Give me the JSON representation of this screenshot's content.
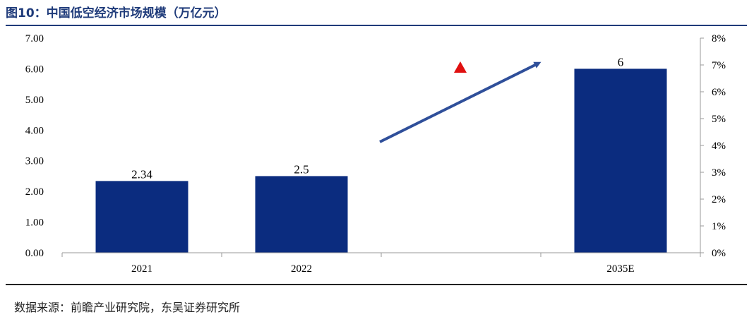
{
  "header": {
    "title": "图10：中国低空经济市场规模（万亿元）"
  },
  "footer": {
    "source": "数据来源：前瞻产业研究院，东吴证券研究所"
  },
  "chart_data": {
    "type": "bar",
    "title": "图10：中国低空经济市场规模（万亿元）",
    "categories": [
      "2021",
      "2022",
      "",
      "2035E"
    ],
    "series": [
      {
        "values": [
          2.34,
          2.5,
          null,
          6
        ]
      }
    ],
    "data_labels": [
      "2.34",
      "2.5",
      "",
      "6"
    ],
    "ylim": [
      0,
      7
    ],
    "yticks": [
      "0.00",
      "1.00",
      "2.00",
      "3.00",
      "4.00",
      "5.00",
      "6.00",
      "7.00"
    ],
    "y2lim": [
      0,
      0.08
    ],
    "y2ticks": [
      "0%",
      "1%",
      "2%",
      "3%",
      "4%",
      "5%",
      "6%",
      "7%",
      "8%"
    ],
    "bar_color": "#0b2c7f",
    "arrow_color": "#2f4f9a",
    "marker_color": "#e01010",
    "grid": false
  }
}
